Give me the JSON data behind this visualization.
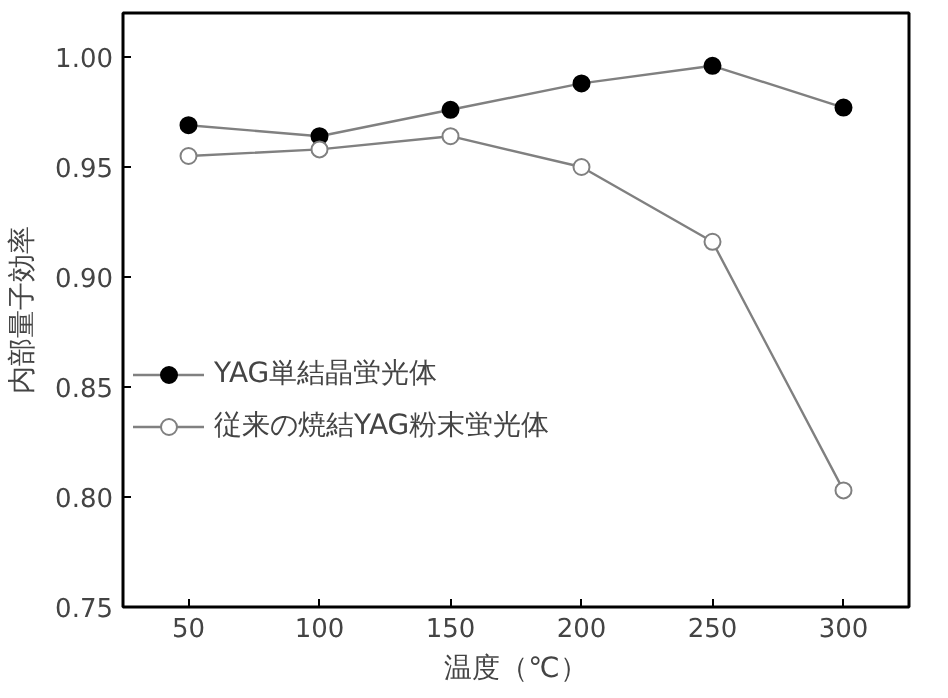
{
  "chart_data": {
    "type": "line",
    "xlabel": "温度（℃）",
    "ylabel": "内部量子効率",
    "x": [
      50,
      100,
      150,
      200,
      250,
      300
    ],
    "series": [
      {
        "name": "YAG単結晶蛍光体",
        "color": "#000000",
        "marker": "circle",
        "values": [
          0.969,
          0.964,
          0.976,
          0.988,
          0.996,
          0.977
        ]
      },
      {
        "name": "従来の焼結YAG粉末蛍光体",
        "color": "#808080",
        "marker": "open_circle",
        "values": [
          0.955,
          0.958,
          0.964,
          0.95,
          0.916,
          0.803
        ]
      }
    ],
    "xlim": [
      25,
      325
    ],
    "xticks": [
      50,
      100,
      150,
      200,
      250,
      300
    ],
    "ylim": [
      0.75,
      1.02
    ],
    "yticks": [
      {
        "value": 0.75,
        "label": "0.75"
      },
      {
        "value": 0.8,
        "label": "0.80"
      },
      {
        "value": 0.85,
        "label": "0.85"
      },
      {
        "value": 0.9,
        "label": "0.90"
      },
      {
        "value": 0.95,
        "label": "0.95"
      },
      {
        "value": 1.0,
        "label": "1.00"
      }
    ],
    "grid": false,
    "legend": "left"
  }
}
